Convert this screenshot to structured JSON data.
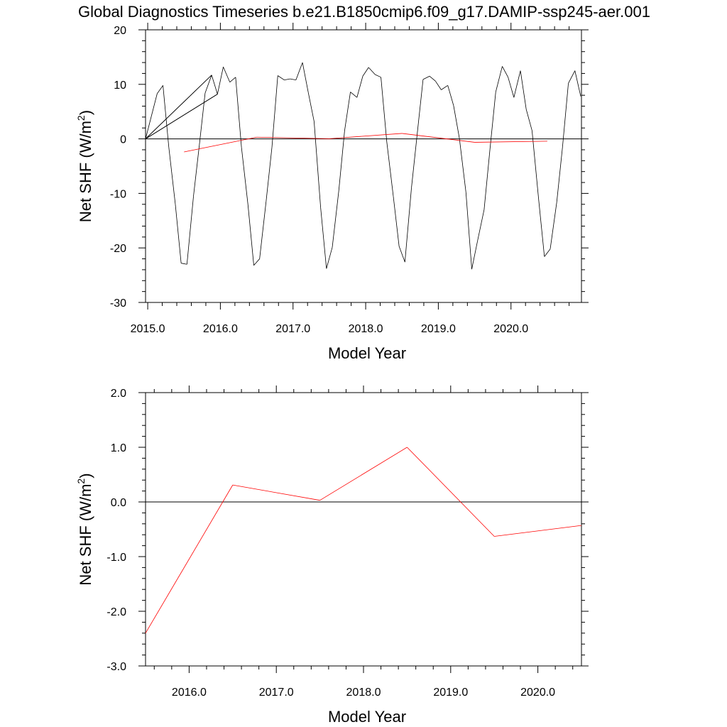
{
  "title": "Global Diagnostics Timeseries b.e21.B1850cmip6.f09_g17.DAMIP-ssp245-aer.001",
  "colors": {
    "monthly": "#000000",
    "annual": "#ff0000",
    "zero_line": "#000000",
    "frame": "#000000"
  },
  "chart_data": [
    {
      "type": "line",
      "ylabel_main": "Net SHF (W/m",
      "ylabel_sup": "2",
      "ylabel_tail": ")",
      "xlabel": "Model Year",
      "xlim": [
        2014.97,
        2020.97
      ],
      "ylim": [
        -30,
        20
      ],
      "x_major_ticks": [
        2015,
        2016,
        2017,
        2018,
        2019,
        2020
      ],
      "x_tick_labels": [
        "2015.0",
        "2016.0",
        "2017.0",
        "2018.0",
        "2019.0",
        "2020.0"
      ],
      "y_major_ticks": [
        -30,
        -20,
        -10,
        0,
        10,
        20
      ],
      "y_tick_labels": [
        "-30",
        "-20",
        "-10",
        "0",
        "10",
        "20"
      ],
      "zero_line": 0,
      "series": [
        {
          "key": "monthly",
          "x": [
            2014.97,
            2015.88,
            2014.97,
            2015.96,
            2014.97,
            2015.13,
            2015.21,
            2015.29,
            2015.38,
            2015.46,
            2015.54,
            2015.63,
            2015.71,
            2015.79,
            2015.88,
            2015.96,
            2016.04,
            2016.13,
            2016.21,
            2016.29,
            2016.38,
            2016.46,
            2016.54,
            2016.63,
            2016.71,
            2016.79,
            2016.88,
            2016.96,
            2017.04,
            2017.13,
            2017.21,
            2017.29,
            2017.38,
            2017.46,
            2017.54,
            2017.63,
            2017.71,
            2017.79,
            2017.88,
            2017.96,
            2018.04,
            2018.13,
            2018.21,
            2018.29,
            2018.38,
            2018.46,
            2018.54,
            2018.63,
            2018.71,
            2018.79,
            2018.88,
            2018.96,
            2019.04,
            2019.13,
            2019.21,
            2019.29,
            2019.38,
            2019.46,
            2019.54,
            2019.63,
            2019.71,
            2019.79,
            2019.88,
            2019.96,
            2020.04,
            2020.13,
            2020.21,
            2020.29,
            2020.38,
            2020.46,
            2020.54,
            2020.63,
            2020.71,
            2020.79,
            2020.88,
            2020.96
          ],
          "y": [
            0.0,
            11.7,
            0.0,
            8.2,
            0.0,
            8.3,
            9.8,
            -1.5,
            -12.0,
            -22.8,
            -23.0,
            -10.5,
            -1.2,
            8.4,
            11.7,
            8.2,
            13.2,
            10.4,
            11.3,
            -1.5,
            -12.1,
            -23.2,
            -22.0,
            -11.4,
            -1.5,
            11.6,
            10.8,
            11.0,
            10.8,
            14.0,
            8.5,
            3.2,
            -12.6,
            -23.8,
            -19.9,
            -9.5,
            1.5,
            8.6,
            7.6,
            11.5,
            13.1,
            11.8,
            11.3,
            -0.5,
            -10.5,
            -19.7,
            -22.6,
            -9.0,
            1.0,
            10.9,
            11.5,
            10.6,
            9.0,
            9.8,
            6.1,
            0.1,
            -9.8,
            -23.9,
            -18.7,
            -13.0,
            -2.0,
            8.6,
            13.3,
            11.3,
            7.6,
            12.5,
            5.4,
            1.5,
            -11.0,
            -21.6,
            -20.2,
            -11.6,
            -1.4,
            10.2,
            12.5,
            7.8
          ]
        },
        {
          "key": "annual",
          "x": [
            2015.5,
            2016.5,
            2017.5,
            2018.5,
            2019.5,
            2020.5
          ],
          "y": [
            -2.4,
            0.31,
            0.03,
            1.0,
            -0.63,
            -0.43
          ]
        }
      ]
    },
    {
      "type": "line",
      "ylabel_main": "Net SHF (W/m",
      "ylabel_sup": "2",
      "ylabel_tail": ")",
      "xlabel": "Model Year",
      "xlim": [
        2015.5,
        2020.5
      ],
      "ylim": [
        -3.0,
        2.0
      ],
      "x_major_ticks": [
        2016,
        2017,
        2018,
        2019,
        2020
      ],
      "x_tick_labels": [
        "2016.0",
        "2017.0",
        "2018.0",
        "2019.0",
        "2020.0"
      ],
      "y_major_ticks": [
        -3,
        -2,
        -1,
        0,
        1,
        2
      ],
      "y_tick_labels": [
        "-3.0",
        "-2.0",
        "-1.0",
        "0.0",
        "1.0",
        "2.0"
      ],
      "zero_line": 0,
      "series": [
        {
          "key": "annual",
          "x": [
            2015.5,
            2016.5,
            2017.5,
            2018.5,
            2019.5,
            2020.5
          ],
          "y": [
            -2.4,
            0.31,
            0.03,
            1.0,
            -0.63,
            -0.43
          ]
        }
      ]
    }
  ]
}
